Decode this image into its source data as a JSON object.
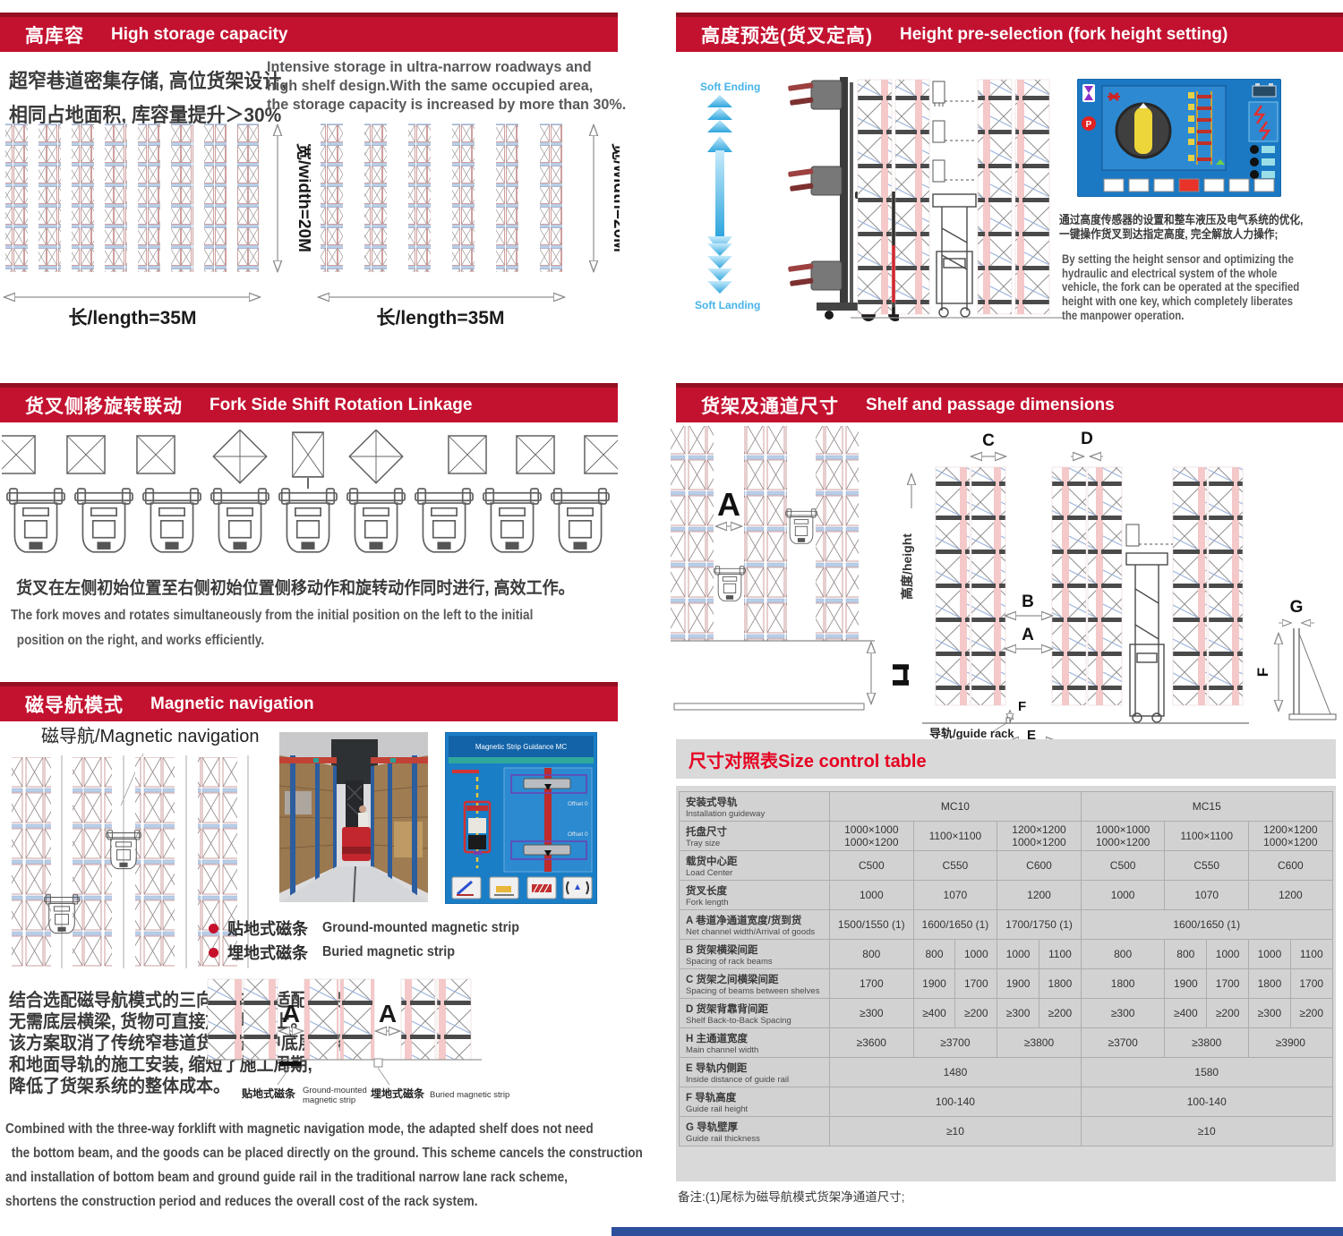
{
  "colors": {
    "banner_red": "#c31230",
    "banner_edge": "#930f22",
    "title_red": "#e60021",
    "accent_blue": "#45b3e8",
    "table_gray": "#d2d2d2",
    "screen_blue": "#1a7ec6",
    "forklift_red": "#c1272d"
  },
  "left": {
    "high_storage": {
      "banner_zh": "高库容",
      "banner_en": "High storage capacity",
      "zh_line1": "超窄巷道密集存储, 高位货架设计,",
      "zh_line2": "相同占地面积, 库容量提升＞30%",
      "en_line1": "Intensive storage in ultra-narrow roadways and",
      "en_line2": "high shelf design.With the same occupied area,",
      "en_line3": "the storage capacity is increased by more than 30%.",
      "length_label": "长/length=35M",
      "width_label": "宽/width=20M"
    },
    "fork_shift": {
      "banner_zh": "货叉侧移旋转联动",
      "banner_en": "Fork Side Shift Rotation Linkage",
      "zh": "货叉在左侧初始位置至右侧初始位置侧移动作和旋转动作同时进行, 高效工作。",
      "en_line1": "The fork moves and rotates simultaneously from the initial position on the left to the initial",
      "en_line2": "position on the right, and works efficiently."
    },
    "magnetic": {
      "banner_zh": "磁导航模式",
      "banner_en": "Magnetic navigation",
      "diagram_label": "磁导航/Magnetic navigation",
      "screen_title": "Magnetic Strip Guidance MC",
      "screen_offset_top": "Offset 0",
      "screen_offset_bottom": "Offset 0",
      "bullet1_zh": "贴地式磁条",
      "bullet1_en": "Ground-mounted magnetic strip",
      "bullet2_zh": "埋地式磁条",
      "bullet2_en": "Buried magnetic strip",
      "zh_line1": "结合选配磁导航模式的三向叉车, 其适配货架",
      "zh_line2": "无需底层横梁, 货物可直接放置地面上。",
      "zh_line3": "该方案取消了传统窄巷道货架方案中底层横梁",
      "zh_line4": "和地面导轨的施工安装, 缩短了施工周期,",
      "zh_line5": "降低了货架系统的整体成本。",
      "dim_a": "A",
      "strip1_zh": "贴地式磁条",
      "strip1_en1": "Ground-mounted",
      "strip1_en2": "magnetic strip",
      "strip2_zh": "埋地式磁条",
      "strip2_en": "Buried magnetic strip",
      "en_line1": "Combined with the three-way forklift with magnetic navigation mode, the adapted shelf does not need",
      "en_line2": "the bottom beam, and the goods can be placed directly on the ground. This scheme cancels the construction",
      "en_line3": "and installation of bottom beam and ground guide rail in the traditional narrow lane rack scheme,",
      "en_line4": "shortens the construction period and reduces the overall cost of the rack system."
    }
  },
  "right": {
    "height_presel": {
      "banner_zh": "高度预选(货叉定高)",
      "banner_en": "Height pre-selection (fork height setting)",
      "soft_ending": "Soft Ending",
      "soft_landing": "Soft Landing",
      "panel_p": "P",
      "zh_line1": "通过高度传感器的设置和整车液压及电气系统的优化,",
      "zh_line2": "一键操作货叉到达指定高度, 完全解放人力操作;",
      "en_line1": "By setting the height sensor and optimizing the",
      "en_line2": "hydraulic and  electrical system of the whole",
      "en_line3": "vehicle, the fork can be operated at the specified",
      "en_line4": "height with one key, which completely liberates",
      "en_line5": "the manpower operation."
    },
    "shelf_dims": {
      "banner_zh": "货架及通道尺寸",
      "banner_en": "Shelf and passage dimensions",
      "height_label": "高度/height",
      "guide_label": "导轨/guide rack",
      "dims": {
        "A": "A",
        "B": "B",
        "C": "C",
        "D": "D",
        "E": "E",
        "F": "F",
        "G": "G",
        "H": "H"
      }
    },
    "size_table": {
      "bar_title": "尺寸对照表Size control table",
      "note": "备注:(1)尾标为磁导航模式货架净通道尺寸;",
      "rows": [
        {
          "zh": "安装式导轨",
          "en": "Installation guideway",
          "cells": [
            {
              "t": "MC10",
              "s": 6
            },
            {
              "t": "MC15",
              "s": 6
            }
          ]
        },
        {
          "zh": "托盘尺寸",
          "en": "Tray size",
          "cells": [
            {
              "t": "1000×1000\n1000×1200",
              "s": 2
            },
            {
              "t": "1100×1100",
              "s": 2
            },
            {
              "t": "1200×1200\n1000×1200",
              "s": 2
            },
            {
              "t": "1000×1000\n1000×1200",
              "s": 2
            },
            {
              "t": "1100×1100",
              "s": 2
            },
            {
              "t": "1200×1200\n1000×1200",
              "s": 2
            }
          ]
        },
        {
          "zh": "载货中心距",
          "en": "Load Center",
          "cells": [
            {
              "t": "C500",
              "s": 2
            },
            {
              "t": "C550",
              "s": 2
            },
            {
              "t": "C600",
              "s": 2
            },
            {
              "t": "C500",
              "s": 2
            },
            {
              "t": "C550",
              "s": 2
            },
            {
              "t": "C600",
              "s": 2
            }
          ]
        },
        {
          "zh": "货叉长度",
          "en": "Fork length",
          "cells": [
            {
              "t": "1000",
              "s": 2
            },
            {
              "t": "1070",
              "s": 2
            },
            {
              "t": "1200",
              "s": 2
            },
            {
              "t": "1000",
              "s": 2
            },
            {
              "t": "1070",
              "s": 2
            },
            {
              "t": "1200",
              "s": 2
            }
          ]
        },
        {
          "zh": "A 巷道净通道宽度/货到货",
          "en": "Net channel width/Arrival of goods",
          "cells": [
            {
              "t": "1500/1550 (1)",
              "s": 2
            },
            {
              "t": "1600/1650 (1)",
              "s": 2
            },
            {
              "t": "1700/1750 (1)",
              "s": 2
            },
            {
              "t": "1600/1650 (1)",
              "s": 6
            }
          ]
        },
        {
          "zh": "B 货架横梁间距",
          "en": "Spacing of rack beams",
          "cells": [
            {
              "t": "800",
              "s": 2
            },
            {
              "t": "800",
              "s": 1
            },
            {
              "t": "1000",
              "s": 1
            },
            {
              "t": "1000",
              "s": 1
            },
            {
              "t": "1100",
              "s": 1
            },
            {
              "t": "800",
              "s": 2
            },
            {
              "t": "800",
              "s": 1
            },
            {
              "t": "1000",
              "s": 1
            },
            {
              "t": "1000",
              "s": 1
            },
            {
              "t": "1100",
              "s": 1
            }
          ]
        },
        {
          "zh": "C 货架之间横梁间距",
          "en": "Spacing of beams between shelves",
          "cells": [
            {
              "t": "1700",
              "s": 2
            },
            {
              "t": "1900",
              "s": 1
            },
            {
              "t": "1700",
              "s": 1
            },
            {
              "t": "1900",
              "s": 1
            },
            {
              "t": "1800",
              "s": 1
            },
            {
              "t": "1800",
              "s": 2
            },
            {
              "t": "1900",
              "s": 1
            },
            {
              "t": "1700",
              "s": 1
            },
            {
              "t": "1800",
              "s": 1
            },
            {
              "t": "1700",
              "s": 1
            }
          ]
        },
        {
          "zh": "D 货架背靠背间距",
          "en": "Shelf Back-to-Back Spacing",
          "cells": [
            {
              "t": "≥300",
              "s": 2
            },
            {
              "t": "≥400",
              "s": 1
            },
            {
              "t": "≥200",
              "s": 1
            },
            {
              "t": "≥300",
              "s": 1
            },
            {
              "t": "≥200",
              "s": 1
            },
            {
              "t": "≥300",
              "s": 2
            },
            {
              "t": "≥400",
              "s": 1
            },
            {
              "t": "≥200",
              "s": 1
            },
            {
              "t": "≥300",
              "s": 1
            },
            {
              "t": "≥200",
              "s": 1
            }
          ]
        },
        {
          "zh": "H 主通道宽度",
          "en": "Main channel width",
          "cells": [
            {
              "t": "≥3600",
              "s": 2
            },
            {
              "t": "≥3700",
              "s": 2
            },
            {
              "t": "≥3800",
              "s": 2
            },
            {
              "t": "≥3700",
              "s": 2
            },
            {
              "t": "≥3800",
              "s": 2
            },
            {
              "t": "≥3900",
              "s": 2
            }
          ]
        },
        {
          "zh": "E 导轨内侧距",
          "en": "Inside distance of guide rail",
          "cells": [
            {
              "t": "1480",
              "s": 6
            },
            {
              "t": "1580",
              "s": 6
            }
          ]
        },
        {
          "zh": "F 导轨高度",
          "en": "Guide rail height",
          "cells": [
            {
              "t": "100-140",
              "s": 6
            },
            {
              "t": "100-140",
              "s": 6
            }
          ]
        },
        {
          "zh": "G 导轨壁厚",
          "en": "Guide rail thickness",
          "cells": [
            {
              "t": "≥10",
              "s": 6
            },
            {
              "t": "≥10",
              "s": 6
            }
          ]
        }
      ]
    }
  }
}
